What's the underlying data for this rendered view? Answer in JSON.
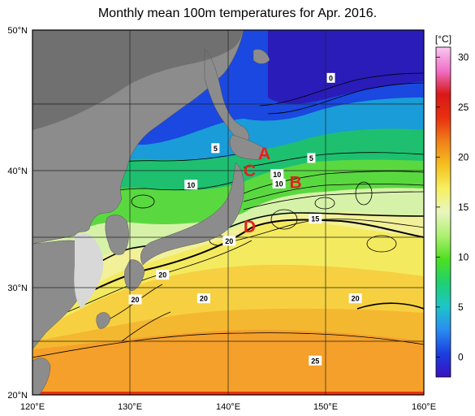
{
  "title": "Monthly mean 100m temperatures for Apr. 2016.",
  "axes": {
    "lat_labels": [
      "50°N",
      "40°N",
      "30°N",
      "20°N"
    ],
    "lon_labels": [
      "120°E",
      "130°E",
      "140°E",
      "150°E",
      "160°E"
    ]
  },
  "colorbar": {
    "unit": "[°C]",
    "ticks": [
      "30",
      "25",
      "20",
      "15",
      "10",
      "5",
      "0"
    ],
    "range": [
      -2,
      31
    ],
    "colors": [
      "#3a10c0",
      "#1a3fe0",
      "#2a8cf0",
      "#1ec6c8",
      "#1fd070",
      "#4de020",
      "#aef070",
      "#e8f6c0",
      "#f6f060",
      "#f4c020",
      "#f08018",
      "#e83010",
      "#d81818",
      "#f070c8",
      "#f8c8f0"
    ]
  },
  "contour_labels": [
    {
      "text": "0",
      "lon": 150.5,
      "lat": 46.6
    },
    {
      "text": "5",
      "lon": 138.7,
      "lat": 41.6
    },
    {
      "text": "5",
      "lon": 148.5,
      "lat": 40.9
    },
    {
      "text": "10",
      "lon": 136.2,
      "lat": 38.8
    },
    {
      "text": "10",
      "lon": 145.0,
      "lat": 39.7
    },
    {
      "text": "10",
      "lon": 145.2,
      "lat": 38.9
    },
    {
      "text": "15",
      "lon": 148.9,
      "lat": 35.9
    },
    {
      "text": "20",
      "lon": 140.1,
      "lat": 34.0
    },
    {
      "text": "20",
      "lon": 133.3,
      "lat": 31.1
    },
    {
      "text": "20",
      "lon": 130.5,
      "lat": 28.9
    },
    {
      "text": "20",
      "lon": 137.5,
      "lat": 29.0
    },
    {
      "text": "20",
      "lon": 153.0,
      "lat": 29.0
    },
    {
      "text": "25",
      "lon": 148.9,
      "lat": 23.2
    }
  ],
  "region_labels": [
    {
      "text": "A",
      "lon": 143.7,
      "lat": 41.2
    },
    {
      "text": "B",
      "lon": 146.9,
      "lat": 39.0
    },
    {
      "text": "C",
      "lon": 142.2,
      "lat": 40.0
    },
    {
      "text": "D",
      "lon": 142.2,
      "lat": 35.2
    }
  ]
}
